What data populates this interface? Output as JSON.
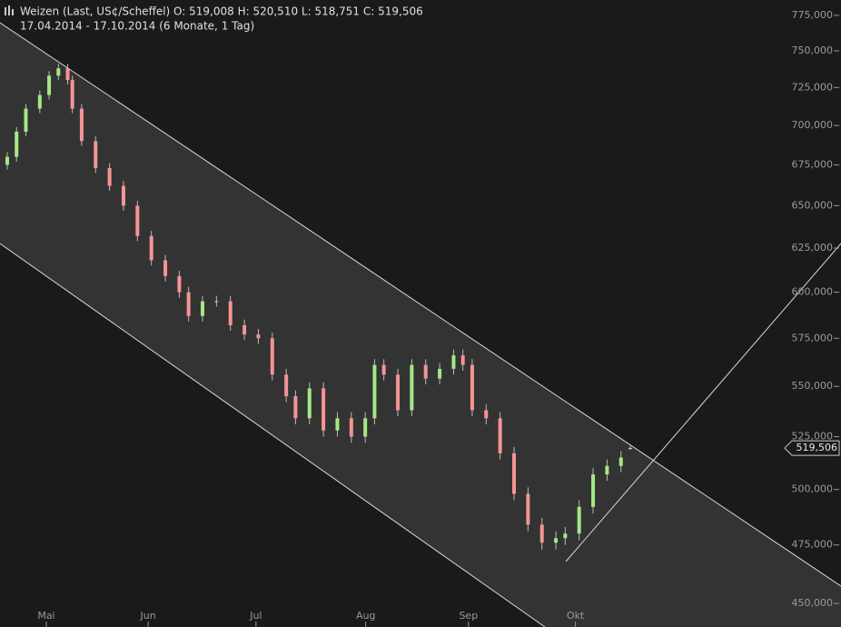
{
  "chart_data": {
    "type": "candlestick",
    "title": "Weizen (Last, US¢/Scheffel)  O: 519,008  H: 520,510  L: 518,751  C: 519,506",
    "subtitle": "17.04.2014 - 17.10.2014 (6 Monate, 1 Tag)",
    "log_scale": true,
    "up_color": "#a4e884",
    "down_color": "#f59494",
    "x": [
      0,
      2,
      4,
      7,
      9,
      11,
      13,
      14,
      16,
      19,
      22,
      25,
      28,
      31,
      34,
      37,
      39,
      42,
      45,
      48,
      51,
      54,
      57,
      60,
      62,
      65,
      68,
      71,
      74,
      77,
      79,
      81,
      84,
      87,
      90,
      93,
      96,
      98,
      100,
      103,
      106,
      109,
      112,
      115,
      118,
      120,
      123,
      126,
      129,
      132,
      134
    ],
    "open": [
      675,
      680,
      696,
      711,
      720,
      733,
      738,
      730,
      711,
      690,
      673,
      662,
      650,
      632,
      618,
      609,
      600,
      587,
      595,
      595,
      582,
      577,
      575,
      556,
      545,
      534,
      549,
      528,
      534,
      525,
      534,
      561,
      556,
      538,
      561,
      554,
      559,
      566,
      561,
      538,
      534,
      517,
      498,
      484,
      476,
      478,
      480,
      492,
      507,
      511,
      519.008
    ],
    "high": [
      683,
      699,
      714,
      723,
      736,
      741,
      741,
      733,
      714,
      693,
      676,
      665,
      653,
      635,
      621,
      612,
      603,
      598,
      598,
      598,
      585,
      580,
      578,
      559,
      548,
      552,
      552,
      537,
      537,
      537,
      564,
      564,
      559,
      564,
      564,
      562,
      569,
      569,
      564,
      541,
      537,
      520,
      501,
      487,
      481,
      483,
      495,
      510,
      514,
      518,
      520.51
    ],
    "low": [
      672,
      677,
      693,
      708,
      717,
      730,
      727,
      708,
      687,
      670,
      659,
      647,
      629,
      615,
      606,
      597,
      584,
      584,
      592,
      579,
      574,
      572,
      553,
      542,
      531,
      531,
      525,
      525,
      522,
      522,
      531,
      553,
      535,
      535,
      551,
      551,
      556,
      558,
      535,
      531,
      514,
      495,
      481,
      473,
      473,
      475,
      477,
      489,
      504,
      508,
      518.751
    ],
    "close": [
      680,
      696,
      711,
      720,
      733,
      738,
      730,
      711,
      690,
      673,
      662,
      650,
      632,
      618,
      609,
      600,
      587,
      595,
      595,
      582,
      577,
      575,
      556,
      545,
      534,
      549,
      528,
      534,
      525,
      534,
      561,
      556,
      538,
      561,
      554,
      559,
      566,
      561,
      538,
      534,
      517,
      498,
      484,
      476,
      478,
      480,
      492,
      507,
      511,
      515,
      519.506
    ],
    "xlim": [
      -1.56,
      167.6
    ],
    "xticks": [
      {
        "value": 8.4,
        "label": "Mai"
      },
      {
        "value": 30.3,
        "label": "Jun"
      },
      {
        "value": 53.5,
        "label": "Jul"
      },
      {
        "value": 77.1,
        "label": "Aug"
      },
      {
        "value": 99.2,
        "label": "Sep"
      },
      {
        "value": 122.2,
        "label": "Okt"
      }
    ],
    "ylim": [
      440.3,
      786.1
    ],
    "yticks": [
      {
        "value": 450,
        "label": "450,000"
      },
      {
        "value": 475,
        "label": "475,000"
      },
      {
        "value": 500,
        "label": "500,000"
      },
      {
        "value": 525,
        "label": "525,000"
      },
      {
        "value": 550,
        "label": "550,000"
      },
      {
        "value": 575,
        "label": "575,000"
      },
      {
        "value": 600,
        "label": "600,000"
      },
      {
        "value": 625,
        "label": "625,000"
      },
      {
        "value": 650,
        "label": "650,000"
      },
      {
        "value": 675,
        "label": "675,000"
      },
      {
        "value": 700,
        "label": "700,000"
      },
      {
        "value": 725,
        "label": "725,000"
      },
      {
        "value": 750,
        "label": "750,000"
      },
      {
        "value": 775,
        "label": "775,000"
      }
    ],
    "last_price": {
      "value": 519.506,
      "label": "519,506"
    }
  }
}
